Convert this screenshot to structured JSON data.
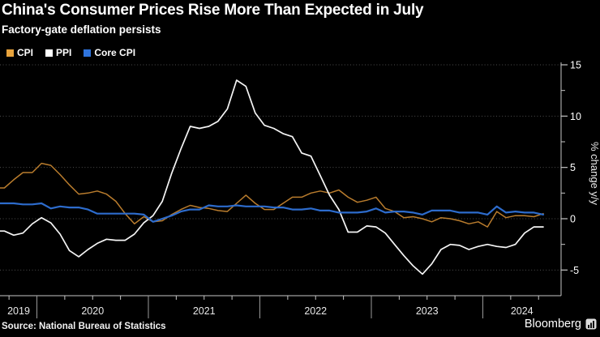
{
  "header": {
    "title": "China's Consumer Prices Rise More Than Expected in July",
    "subtitle": "Factory-gate deflation persists"
  },
  "legend": {
    "items": [
      {
        "label": "CPI",
        "swatch": "#e8a33c"
      },
      {
        "label": "PPI",
        "swatch": "#ffffff"
      },
      {
        "label": "Core CPI",
        "swatch": "#2f74dd"
      }
    ]
  },
  "chart_data": {
    "type": "line",
    "title": "China's Consumer Prices Rise More Than Expected in July",
    "subtitle": "Factory-gate deflation persists",
    "xlabel": "",
    "ylabel": "% change y/y",
    "ylim": [
      -7.5,
      15.5
    ],
    "y_major_ticks": [
      15,
      10,
      5,
      0,
      -5
    ],
    "y_minor_ticks": [
      12.5,
      7.5,
      2.5,
      -2.5
    ],
    "x_tick_labels": [
      "2019",
      "2020",
      "2021",
      "2022",
      "2023",
      "2024"
    ],
    "grid": "horizontal dotted lines at major y ticks",
    "legend_position": "top-left",
    "months": [
      "2019-09",
      "2019-10",
      "2019-11",
      "2019-12",
      "2020-01",
      "2020-02",
      "2020-03",
      "2020-04",
      "2020-05",
      "2020-06",
      "2020-07",
      "2020-08",
      "2020-09",
      "2020-10",
      "2020-11",
      "2020-12",
      "2021-01",
      "2021-02",
      "2021-03",
      "2021-04",
      "2021-05",
      "2021-06",
      "2021-07",
      "2021-08",
      "2021-09",
      "2021-10",
      "2021-11",
      "2021-12",
      "2022-01",
      "2022-02",
      "2022-03",
      "2022-04",
      "2022-05",
      "2022-06",
      "2022-07",
      "2022-08",
      "2022-09",
      "2022-10",
      "2022-11",
      "2022-12",
      "2023-01",
      "2023-02",
      "2023-03",
      "2023-04",
      "2023-05",
      "2023-06",
      "2023-07",
      "2023-08",
      "2023-09",
      "2023-10",
      "2023-11",
      "2023-12",
      "2024-01",
      "2024-02",
      "2024-03",
      "2024-04",
      "2024-05",
      "2024-06",
      "2024-07"
    ],
    "series": [
      {
        "name": "CPI",
        "color": "#b97c2d",
        "values": [
          3.0,
          3.8,
          4.5,
          4.5,
          5.4,
          5.2,
          4.3,
          3.3,
          2.4,
          2.5,
          2.7,
          2.4,
          1.7,
          0.5,
          -0.5,
          0.2,
          -0.3,
          -0.2,
          0.4,
          0.9,
          1.3,
          1.1,
          1.0,
          0.8,
          0.7,
          1.5,
          2.3,
          1.5,
          0.9,
          0.9,
          1.5,
          2.1,
          2.1,
          2.5,
          2.7,
          2.5,
          2.8,
          2.1,
          1.6,
          1.8,
          2.1,
          1.0,
          0.7,
          0.1,
          0.2,
          0.0,
          -0.3,
          0.1,
          0.0,
          -0.2,
          -0.5,
          -0.3,
          -0.8,
          0.7,
          0.1,
          0.3,
          0.3,
          0.2,
          0.5
        ]
      },
      {
        "name": "PPI",
        "color": "#f5f5f5",
        "values": [
          -1.2,
          -1.6,
          -1.4,
          -0.5,
          0.1,
          -0.4,
          -1.5,
          -3.1,
          -3.7,
          -3.0,
          -2.4,
          -2.0,
          -2.1,
          -2.1,
          -1.5,
          -0.4,
          0.3,
          1.7,
          4.4,
          6.8,
          9.0,
          8.8,
          9.0,
          9.5,
          10.7,
          13.5,
          12.9,
          10.3,
          9.1,
          8.8,
          8.3,
          8.0,
          6.4,
          6.1,
          4.2,
          2.3,
          0.9,
          -1.3,
          -1.3,
          -0.7,
          -0.8,
          -1.4,
          -2.5,
          -3.6,
          -4.6,
          -5.4,
          -4.4,
          -3.0,
          -2.5,
          -2.6,
          -3.0,
          -2.7,
          -2.5,
          -2.7,
          -2.8,
          -2.5,
          -1.4,
          -0.8,
          -0.8
        ]
      },
      {
        "name": "Core CPI",
        "color": "#2d6ccd",
        "values": [
          1.5,
          1.5,
          1.4,
          1.4,
          1.5,
          1.0,
          1.2,
          1.1,
          1.1,
          0.9,
          0.5,
          0.5,
          0.5,
          0.5,
          0.5,
          0.4,
          -0.3,
          0.0,
          0.3,
          0.7,
          0.9,
          0.9,
          1.3,
          1.2,
          1.2,
          1.3,
          1.2,
          1.2,
          1.2,
          1.1,
          1.1,
          0.9,
          0.9,
          1.0,
          0.8,
          0.8,
          0.6,
          0.6,
          0.6,
          0.7,
          1.0,
          0.6,
          0.7,
          0.7,
          0.6,
          0.4,
          0.8,
          0.8,
          0.8,
          0.6,
          0.6,
          0.6,
          0.4,
          1.2,
          0.6,
          0.7,
          0.6,
          0.6,
          0.4
        ]
      }
    ]
  },
  "footer": {
    "source": "Source: National Bureau of Statistics",
    "brand": "Bloomberg"
  }
}
